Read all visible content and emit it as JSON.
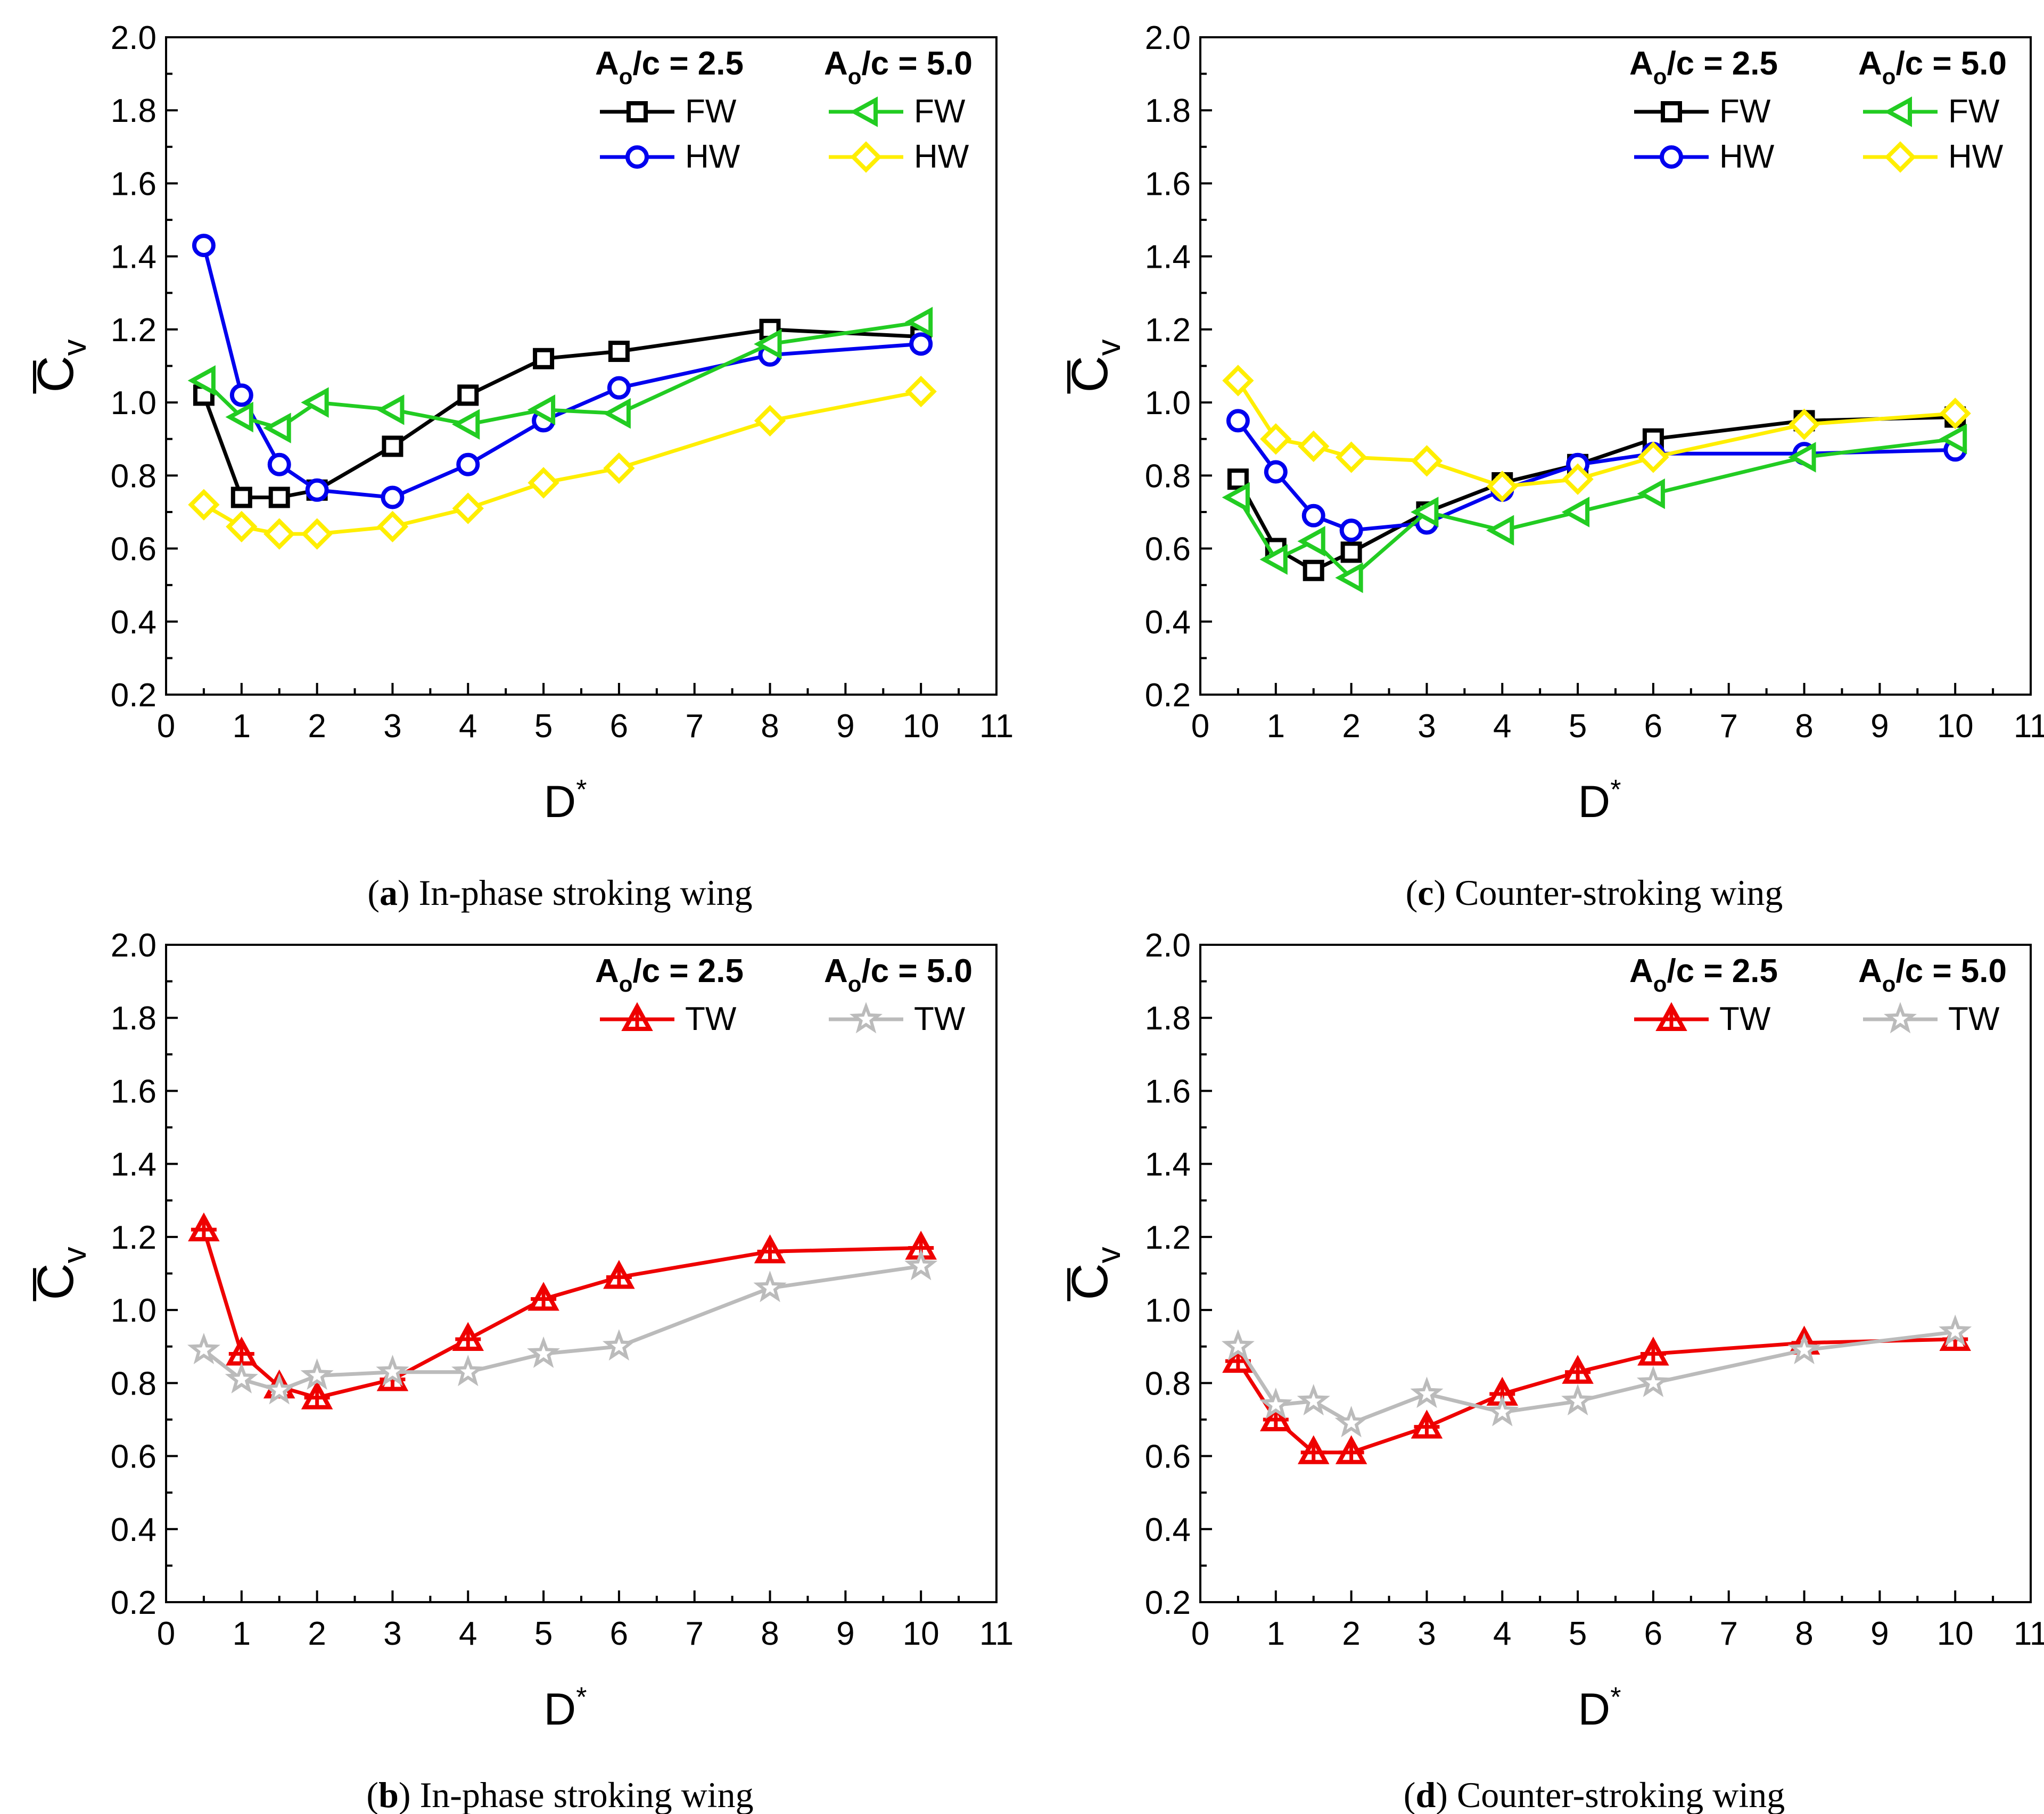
{
  "chart_data": [
    {
      "id": "a",
      "type": "line",
      "caption": {
        "letter": "a",
        "text": "In-phase stroking wing"
      },
      "xlabel": "D",
      "xlabel_sup": "*",
      "ylabel": "C",
      "ylabel_sub": "v",
      "xlim": [
        0,
        11
      ],
      "ylim": [
        0.2,
        2.0
      ],
      "xticks": [
        "0",
        "1",
        "2",
        "3",
        "4",
        "5",
        "6",
        "7",
        "8",
        "9",
        "10",
        "11"
      ],
      "yticks": [
        "0.2",
        "0.4",
        "0.6",
        "0.8",
        "1.0",
        "1.2",
        "1.4",
        "1.6",
        "1.8",
        "2.0"
      ],
      "legend_headers": [
        {
          "main": "A",
          "sub": "o",
          "rest": "/c = 2.5"
        },
        {
          "main": "A",
          "sub": "o",
          "rest": "/c = 5.0"
        }
      ],
      "series": [
        {
          "name": "FW",
          "group": "A_o/c = 2.5",
          "color": "#000000",
          "marker": "square",
          "x": [
            0.5,
            1,
            1.5,
            2,
            3,
            4,
            5,
            6,
            8,
            10
          ],
          "y": [
            1.02,
            0.74,
            0.74,
            0.76,
            0.88,
            1.02,
            1.12,
            1.14,
            1.2,
            1.18
          ]
        },
        {
          "name": "HW",
          "group": "A_o/c = 2.5",
          "color": "#0000ee",
          "marker": "circle",
          "x": [
            0.5,
            1,
            1.5,
            2,
            3,
            4,
            5,
            6,
            8,
            10
          ],
          "y": [
            1.43,
            1.02,
            0.83,
            0.76,
            0.74,
            0.83,
            0.95,
            1.04,
            1.13,
            1.16
          ]
        },
        {
          "name": "FW",
          "group": "A_o/c = 5.0",
          "color": "#22cc22",
          "marker": "triangle-left",
          "x": [
            0.5,
            1,
            1.5,
            2,
            3,
            4,
            5,
            6,
            8,
            10
          ],
          "y": [
            1.06,
            0.96,
            0.93,
            1.0,
            0.98,
            0.94,
            0.98,
            0.97,
            1.16,
            1.22
          ]
        },
        {
          "name": "HW",
          "group": "A_o/c = 5.0",
          "color": "#ffee00",
          "marker": "diamond",
          "x": [
            0.5,
            1,
            1.5,
            2,
            3,
            4,
            5,
            6,
            8,
            10
          ],
          "y": [
            0.72,
            0.66,
            0.64,
            0.64,
            0.66,
            0.71,
            0.78,
            0.82,
            0.95,
            1.03
          ]
        }
      ]
    },
    {
      "id": "c",
      "type": "line",
      "caption": {
        "letter": "c",
        "text": "Counter-stroking wing"
      },
      "xlabel": "D",
      "xlabel_sup": "*",
      "ylabel": "C",
      "ylabel_sub": "v",
      "xlim": [
        0,
        11
      ],
      "ylim": [
        0.2,
        2.0
      ],
      "xticks": [
        "0",
        "1",
        "2",
        "3",
        "4",
        "5",
        "6",
        "7",
        "8",
        "9",
        "10",
        "11"
      ],
      "yticks": [
        "0.2",
        "0.4",
        "0.6",
        "0.8",
        "1.0",
        "1.2",
        "1.4",
        "1.6",
        "1.8",
        "2.0"
      ],
      "legend_headers": [
        {
          "main": "A",
          "sub": "o",
          "rest": "/c = 2.5"
        },
        {
          "main": "A",
          "sub": "o",
          "rest": "/c = 5.0"
        }
      ],
      "series": [
        {
          "name": "FW",
          "group": "A_o/c = 2.5",
          "color": "#000000",
          "marker": "square",
          "x": [
            0.5,
            1,
            1.5,
            2,
            3,
            4,
            5,
            6,
            8,
            10
          ],
          "y": [
            0.79,
            0.6,
            0.54,
            0.59,
            0.7,
            0.78,
            0.83,
            0.9,
            0.95,
            0.96
          ]
        },
        {
          "name": "HW",
          "group": "A_o/c = 2.5",
          "color": "#0000ee",
          "marker": "circle",
          "x": [
            0.5,
            1,
            1.5,
            2,
            3,
            4,
            5,
            6,
            8,
            10
          ],
          "y": [
            0.95,
            0.81,
            0.69,
            0.65,
            0.67,
            0.76,
            0.83,
            0.86,
            0.86,
            0.87
          ]
        },
        {
          "name": "FW",
          "group": "A_o/c = 5.0",
          "color": "#22cc22",
          "marker": "triangle-left",
          "x": [
            0.5,
            1,
            1.5,
            2,
            3,
            4,
            5,
            6,
            8,
            10
          ],
          "y": [
            0.74,
            0.57,
            0.62,
            0.52,
            0.7,
            0.65,
            0.7,
            0.75,
            0.85,
            0.9
          ]
        },
        {
          "name": "HW",
          "group": "A_o/c = 5.0",
          "color": "#ffee00",
          "marker": "diamond",
          "x": [
            0.5,
            1,
            1.5,
            2,
            3,
            4,
            5,
            6,
            8,
            10
          ],
          "y": [
            1.06,
            0.9,
            0.88,
            0.85,
            0.84,
            0.77,
            0.79,
            0.85,
            0.94,
            0.97
          ]
        }
      ]
    },
    {
      "id": "b",
      "type": "line",
      "caption": {
        "letter": "b",
        "text": "In-phase stroking wing"
      },
      "xlabel": "D",
      "xlabel_sup": "*",
      "ylabel": "C",
      "ylabel_sub": "v",
      "xlim": [
        0,
        11
      ],
      "ylim": [
        0.2,
        2.0
      ],
      "xticks": [
        "0",
        "1",
        "2",
        "3",
        "4",
        "5",
        "6",
        "7",
        "8",
        "9",
        "10",
        "11"
      ],
      "yticks": [
        "0.2",
        "0.4",
        "0.6",
        "0.8",
        "1.0",
        "1.2",
        "1.4",
        "1.6",
        "1.8",
        "2.0"
      ],
      "legend_headers": [
        {
          "main": "A",
          "sub": "o",
          "rest": "/c = 2.5"
        },
        {
          "main": "A",
          "sub": "o",
          "rest": "/c = 5.0"
        }
      ],
      "series": [
        {
          "name": "TW",
          "group": "A_o/c = 2.5",
          "color": "#ee0000",
          "marker": "triangle-up-cross",
          "x": [
            0.5,
            1,
            1.5,
            2,
            3,
            4,
            5,
            6,
            8,
            10
          ],
          "y": [
            1.22,
            0.88,
            0.79,
            0.76,
            0.81,
            0.92,
            1.03,
            1.09,
            1.16,
            1.17
          ]
        },
        {
          "name": "TW",
          "group": "A_o/c = 5.0",
          "color": "#bbbbbb",
          "marker": "star",
          "x": [
            0.5,
            1,
            1.5,
            2,
            3,
            4,
            5,
            6,
            8,
            10
          ],
          "y": [
            0.89,
            0.81,
            0.78,
            0.82,
            0.83,
            0.83,
            0.88,
            0.9,
            1.06,
            1.12
          ]
        }
      ]
    },
    {
      "id": "d",
      "type": "line",
      "caption": {
        "letter": "d",
        "text": "Counter-stroking wing"
      },
      "xlabel": "D",
      "xlabel_sup": "*",
      "ylabel": "C",
      "ylabel_sub": "v",
      "xlim": [
        0,
        11
      ],
      "ylim": [
        0.2,
        2.0
      ],
      "xticks": [
        "0",
        "1",
        "2",
        "3",
        "4",
        "5",
        "6",
        "7",
        "8",
        "9",
        "10",
        "11"
      ],
      "yticks": [
        "0.2",
        "0.4",
        "0.6",
        "0.8",
        "1.0",
        "1.2",
        "1.4",
        "1.6",
        "1.8",
        "2.0"
      ],
      "legend_headers": [
        {
          "main": "A",
          "sub": "o",
          "rest": "/c = 2.5"
        },
        {
          "main": "A",
          "sub": "o",
          "rest": "/c = 5.0"
        }
      ],
      "series": [
        {
          "name": "TW",
          "group": "A_o/c = 2.5",
          "color": "#ee0000",
          "marker": "triangle-up-cross",
          "x": [
            0.5,
            1,
            1.5,
            2,
            3,
            4,
            5,
            6,
            8,
            10
          ],
          "y": [
            0.86,
            0.7,
            0.61,
            0.61,
            0.68,
            0.77,
            0.83,
            0.88,
            0.91,
            0.92
          ]
        },
        {
          "name": "TW",
          "group": "A_o/c = 5.0",
          "color": "#bbbbbb",
          "marker": "star",
          "x": [
            0.5,
            1,
            1.5,
            2,
            3,
            4,
            5,
            6,
            8,
            10
          ],
          "y": [
            0.9,
            0.74,
            0.75,
            0.69,
            0.77,
            0.72,
            0.75,
            0.8,
            0.89,
            0.94
          ]
        }
      ]
    }
  ]
}
